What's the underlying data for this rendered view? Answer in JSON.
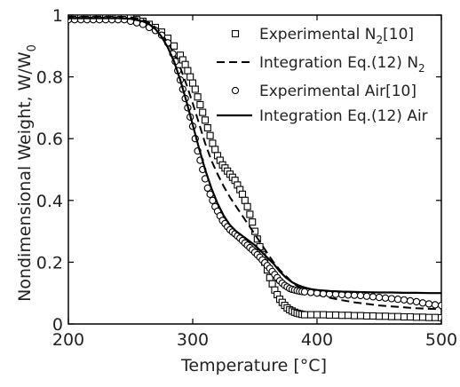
{
  "chart_data": {
    "type": "scatter",
    "xlabel": "Temperature [°C]",
    "ylabel": "Nondimensional Weight, W/W",
    "ylabel_sub": "0",
    "xlim": [
      200,
      500
    ],
    "ylim": [
      0,
      1
    ],
    "xticks": [
      "200",
      "300",
      "400",
      "500"
    ],
    "yticks": [
      "0",
      "0.2",
      "0.4",
      "0.6",
      "0.8",
      "1"
    ],
    "grid": false,
    "legend_position": "top-right",
    "series": [
      {
        "name": "Experimental N2[10]",
        "legend_main": "Experimental N",
        "legend_sub": "2",
        "legend_tail": "[10]",
        "style": "square-markers",
        "x": [
          200,
          205,
          210,
          215,
          220,
          225,
          230,
          235,
          240,
          245,
          250,
          255,
          260,
          265,
          270,
          275,
          280,
          285,
          290,
          292,
          294,
          296,
          298,
          300,
          302,
          304,
          306,
          308,
          310,
          312,
          314,
          316,
          318,
          320,
          322,
          324,
          326,
          328,
          330,
          332,
          334,
          336,
          338,
          340,
          342,
          344,
          346,
          348,
          350,
          352,
          354,
          356,
          358,
          360,
          362,
          364,
          366,
          368,
          370,
          372,
          374,
          376,
          378,
          380,
          382,
          384,
          386,
          388,
          390,
          395,
          400,
          405,
          410,
          415,
          420,
          425,
          430,
          435,
          440,
          445,
          450,
          455,
          460,
          465,
          470,
          475,
          480,
          485,
          490,
          495,
          500
        ],
        "y": [
          0.99,
          0.99,
          0.99,
          0.99,
          0.99,
          0.99,
          0.99,
          0.99,
          0.99,
          0.99,
          0.99,
          0.985,
          0.98,
          0.97,
          0.96,
          0.945,
          0.925,
          0.9,
          0.87,
          0.855,
          0.84,
          0.82,
          0.8,
          0.78,
          0.76,
          0.735,
          0.71,
          0.685,
          0.66,
          0.635,
          0.61,
          0.585,
          0.565,
          0.545,
          0.53,
          0.515,
          0.505,
          0.495,
          0.485,
          0.475,
          0.465,
          0.45,
          0.435,
          0.42,
          0.4,
          0.38,
          0.355,
          0.33,
          0.3,
          0.275,
          0.25,
          0.225,
          0.2,
          0.175,
          0.15,
          0.13,
          0.11,
          0.095,
          0.08,
          0.07,
          0.06,
          0.052,
          0.046,
          0.042,
          0.038,
          0.035,
          0.033,
          0.031,
          0.03,
          0.03,
          0.03,
          0.03,
          0.029,
          0.029,
          0.028,
          0.028,
          0.027,
          0.027,
          0.026,
          0.026,
          0.025,
          0.025,
          0.024,
          0.024,
          0.023,
          0.023,
          0.022,
          0.022,
          0.021,
          0.021,
          0.02
        ]
      },
      {
        "name": "Integration Eq.(12) N2",
        "legend_main": "Integration Eq.(12) N",
        "legend_sub": "2",
        "legend_tail": "",
        "style": "dashed-line",
        "x": [
          200,
          220,
          240,
          250,
          260,
          265,
          270,
          275,
          280,
          285,
          290,
          295,
          300,
          305,
          310,
          315,
          320,
          325,
          330,
          335,
          340,
          345,
          350,
          355,
          360,
          365,
          370,
          375,
          380,
          385,
          390,
          400,
          410,
          420,
          430,
          440,
          450,
          460,
          470,
          480,
          490,
          500
        ],
        "y": [
          0.995,
          0.995,
          0.995,
          0.993,
          0.985,
          0.975,
          0.96,
          0.94,
          0.91,
          0.875,
          0.83,
          0.775,
          0.715,
          0.65,
          0.585,
          0.53,
          0.485,
          0.445,
          0.41,
          0.38,
          0.35,
          0.32,
          0.29,
          0.26,
          0.23,
          0.2,
          0.175,
          0.155,
          0.135,
          0.12,
          0.108,
          0.095,
          0.085,
          0.077,
          0.07,
          0.065,
          0.06,
          0.057,
          0.054,
          0.051,
          0.049,
          0.048
        ]
      },
      {
        "name": "Experimental Air[10]",
        "legend_main": "Experimental Air[10]",
        "legend_sub": "",
        "legend_tail": "",
        "style": "circle-markers",
        "x": [
          200,
          205,
          210,
          215,
          220,
          225,
          230,
          235,
          240,
          245,
          250,
          255,
          260,
          265,
          270,
          275,
          280,
          284,
          286,
          288,
          290,
          292,
          294,
          296,
          298,
          300,
          302,
          304,
          306,
          308,
          310,
          312,
          314,
          316,
          318,
          320,
          322,
          324,
          326,
          328,
          330,
          332,
          334,
          336,
          338,
          340,
          342,
          344,
          346,
          348,
          350,
          352,
          354,
          356,
          358,
          360,
          362,
          364,
          366,
          368,
          370,
          372,
          374,
          376,
          378,
          380,
          382,
          384,
          386,
          388,
          390,
          395,
          400,
          405,
          410,
          415,
          420,
          425,
          430,
          435,
          440,
          445,
          450,
          455,
          460,
          465,
          470,
          475,
          480,
          485,
          490,
          495,
          500
        ],
        "y": [
          0.985,
          0.985,
          0.985,
          0.985,
          0.985,
          0.985,
          0.985,
          0.985,
          0.985,
          0.985,
          0.98,
          0.975,
          0.97,
          0.96,
          0.95,
          0.935,
          0.91,
          0.875,
          0.85,
          0.82,
          0.79,
          0.76,
          0.73,
          0.7,
          0.67,
          0.64,
          0.6,
          0.56,
          0.53,
          0.5,
          0.47,
          0.44,
          0.42,
          0.4,
          0.38,
          0.365,
          0.35,
          0.335,
          0.325,
          0.315,
          0.305,
          0.298,
          0.292,
          0.285,
          0.278,
          0.27,
          0.262,
          0.255,
          0.247,
          0.24,
          0.232,
          0.224,
          0.216,
          0.207,
          0.198,
          0.189,
          0.18,
          0.17,
          0.16,
          0.15,
          0.14,
          0.132,
          0.125,
          0.12,
          0.115,
          0.112,
          0.11,
          0.108,
          0.106,
          0.105,
          0.104,
          0.102,
          0.1,
          0.098,
          0.097,
          0.096,
          0.095,
          0.094,
          0.093,
          0.092,
          0.09,
          0.088,
          0.086,
          0.084,
          0.082,
          0.08,
          0.078,
          0.075,
          0.072,
          0.068,
          0.065,
          0.062,
          0.06
        ]
      },
      {
        "name": "Integration Eq.(12) Air",
        "legend_main": "Integration Eq.(12) Air",
        "legend_sub": "",
        "legend_tail": "",
        "style": "solid-line",
        "x": [
          200,
          220,
          240,
          250,
          260,
          265,
          270,
          275,
          280,
          285,
          290,
          295,
          300,
          305,
          310,
          315,
          320,
          325,
          330,
          335,
          340,
          345,
          350,
          355,
          360,
          365,
          370,
          375,
          380,
          385,
          390,
          395,
          400,
          410,
          420,
          430,
          440,
          450,
          460,
          470,
          480,
          490,
          500
        ],
        "y": [
          0.99,
          0.99,
          0.99,
          0.988,
          0.98,
          0.97,
          0.955,
          0.93,
          0.895,
          0.85,
          0.79,
          0.72,
          0.645,
          0.57,
          0.5,
          0.44,
          0.39,
          0.35,
          0.32,
          0.3,
          0.285,
          0.27,
          0.255,
          0.235,
          0.215,
          0.195,
          0.17,
          0.15,
          0.135,
          0.125,
          0.118,
          0.113,
          0.11,
          0.107,
          0.105,
          0.104,
          0.103,
          0.102,
          0.102,
          0.101,
          0.101,
          0.1,
          0.1
        ]
      }
    ]
  }
}
